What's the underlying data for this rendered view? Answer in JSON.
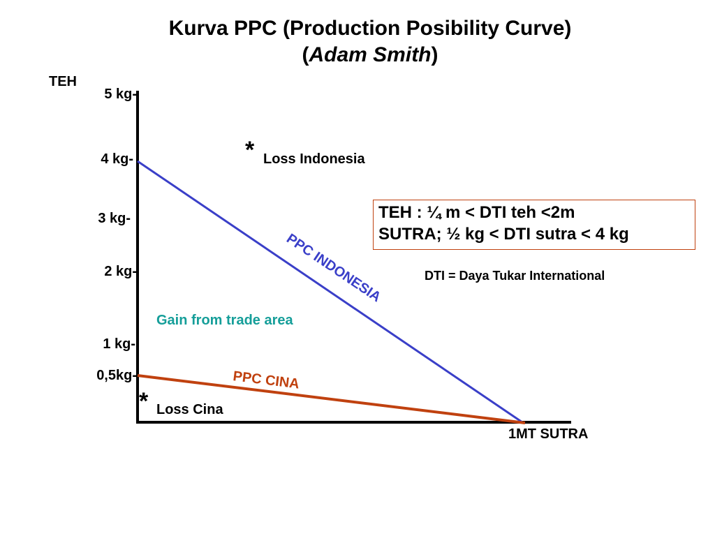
{
  "title": {
    "line1": "Kurva PPC (Production Posibility Curve)",
    "line2_open": "(",
    "line2_italic": "Adam Smith",
    "line2_close": ")"
  },
  "axes": {
    "y_label": "TEH",
    "x_label": "1MT SUTRA",
    "y_ticks": [
      "5 kg-",
      "4 kg-",
      "3 kg-",
      "2 kg-",
      "1 kg-",
      "0,5kg-"
    ]
  },
  "annotations": {
    "star": "*",
    "loss_indonesia": "Loss Indonesia",
    "loss_cina": "Loss Cina",
    "gain_area": "Gain from trade area"
  },
  "curves": {
    "indonesia_label": "PPC INDONESIA",
    "cina_label": "PPC CINA"
  },
  "info_box": {
    "line1": "TEH : ¼ m < DTI teh <2m",
    "line2": "SUTRA; ½ kg < DTI sutra < 4 kg"
  },
  "definition": "DTI = Daya Tukar International",
  "colors": {
    "indonesia_line": "#3a3fc8",
    "cina_line": "#c0410f",
    "gain_text": "#159e99",
    "axis": "#000000"
  }
}
